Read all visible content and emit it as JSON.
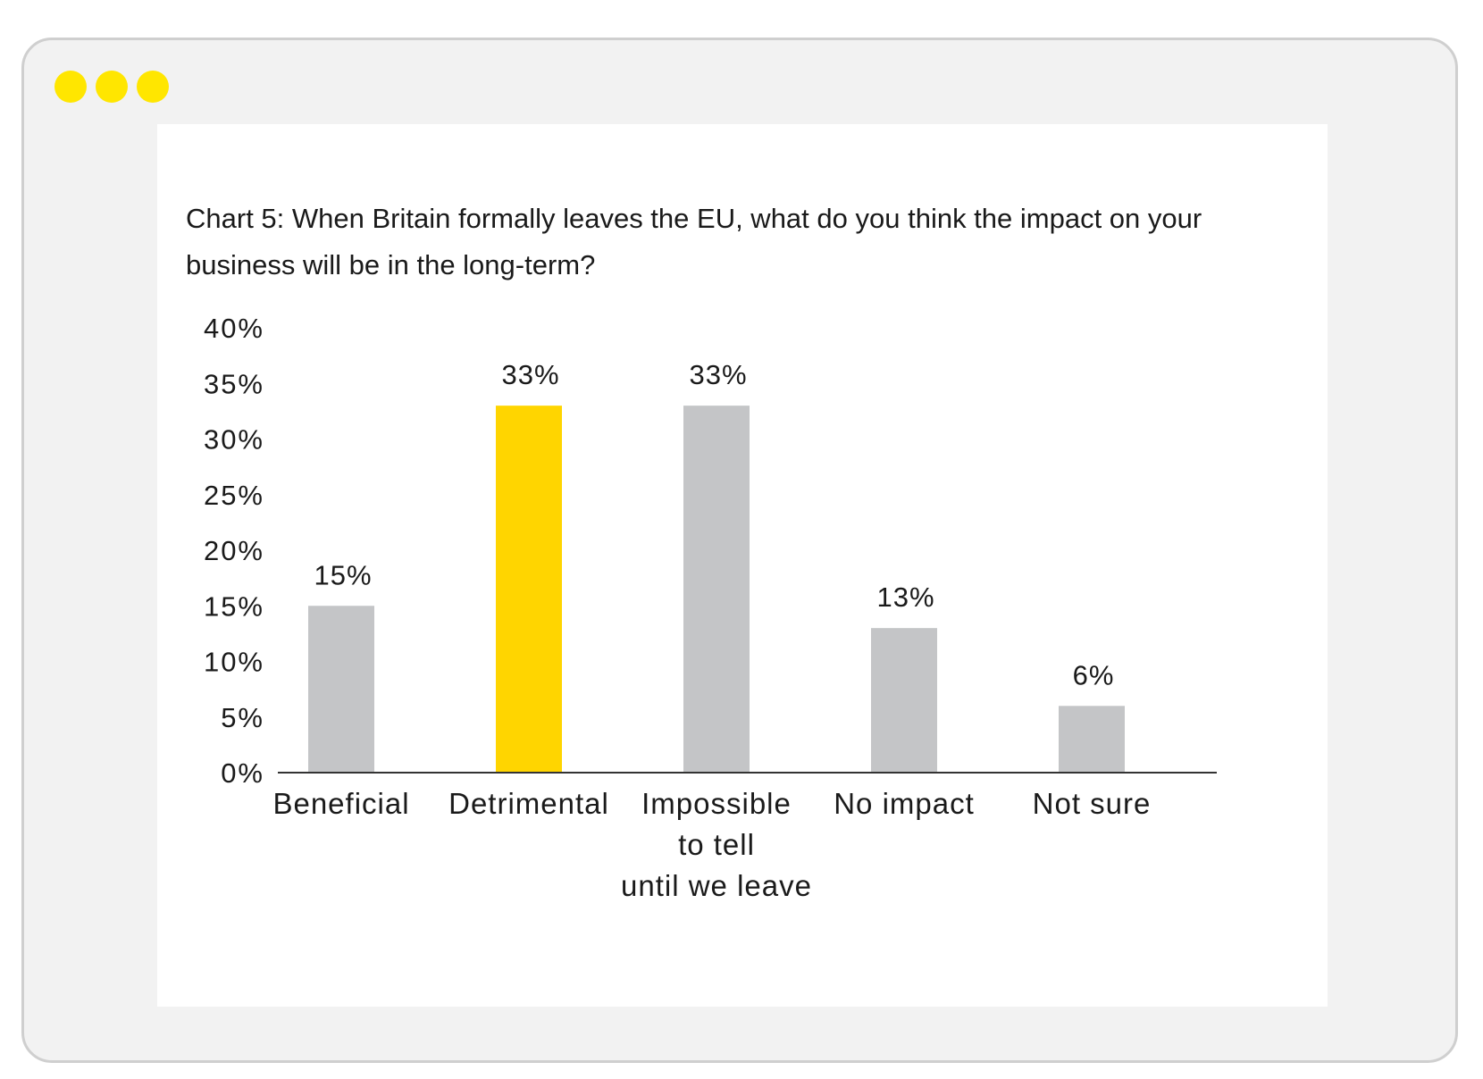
{
  "window": {
    "dots": [
      "dot-1",
      "dot-2",
      "dot-3"
    ],
    "dot_color": "#ffe600"
  },
  "chart_data": {
    "type": "bar",
    "title": "Chart 5: When Britain formally leaves the EU, what do you think the impact on your business will be in the long-term?",
    "categories": [
      [
        "Beneficial"
      ],
      [
        "Detrimental"
      ],
      [
        "Impossible",
        "to tell",
        "until we leave"
      ],
      [
        "No impact"
      ],
      [
        "Not sure"
      ]
    ],
    "values": [
      15,
      33,
      33,
      13,
      6
    ],
    "value_labels": [
      "15%",
      "33%",
      "33%",
      "13%",
      "6%"
    ],
    "colors": [
      "#c4c5c7",
      "#ffd500",
      "#c4c5c7",
      "#c4c5c7",
      "#c4c5c7"
    ],
    "ylim": [
      0,
      40
    ],
    "yticks": [
      0,
      5,
      10,
      15,
      20,
      25,
      30,
      35,
      40
    ],
    "ytick_labels": [
      "0%",
      "5%",
      "10%",
      "15%",
      "20%",
      "25%",
      "30%",
      "35%",
      "40%"
    ],
    "xlabel": "",
    "ylabel": "",
    "grid": false,
    "legend": "none"
  }
}
